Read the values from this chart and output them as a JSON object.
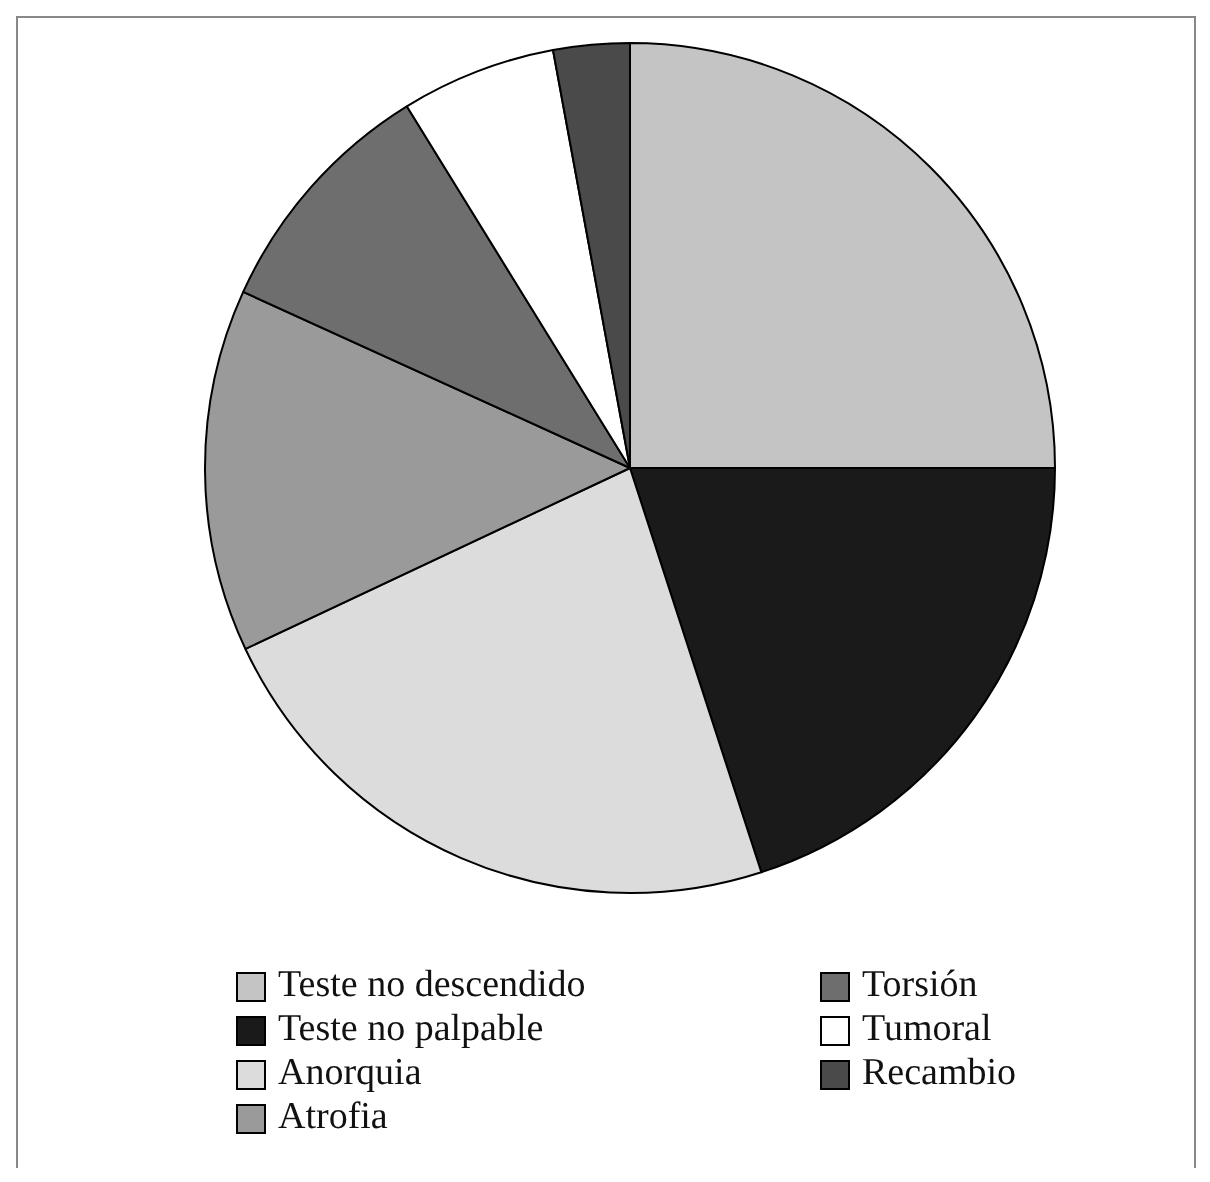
{
  "chart_data": {
    "type": "pie",
    "categories": [
      "Teste no descendido",
      "Teste no palpable",
      "Anorquia",
      "Atrofia",
      "Torsión",
      "Tumoral",
      "Recambio"
    ],
    "values": [
      25,
      20,
      23,
      13.8,
      9.4,
      5.9,
      2.9
    ],
    "colors": [
      "#c4c4c4",
      "#1a1a1a",
      "#dcdcdc",
      "#9a9a9a",
      "#6e6e6e",
      "#ffffff",
      "#4a4a4a"
    ],
    "legend": "bottom"
  }
}
